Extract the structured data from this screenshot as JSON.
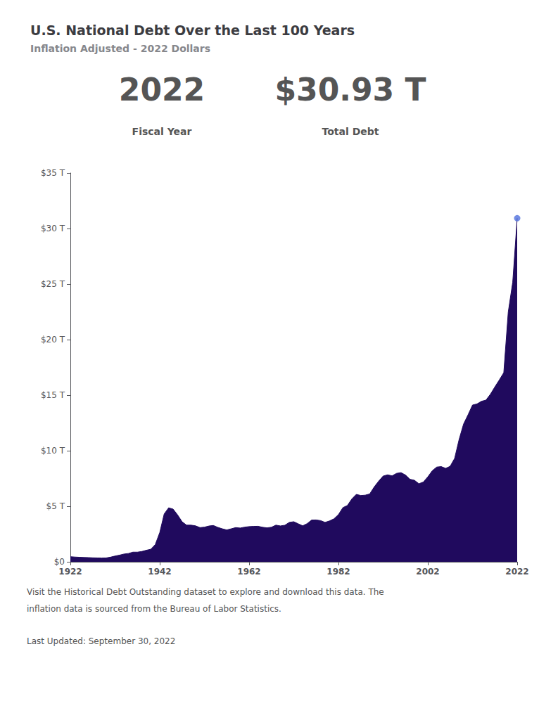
{
  "chart_data": {
    "type": "area",
    "title": "U.S. National Debt Over the Last 100 Years",
    "subtitle": "Inflation Adjusted - 2022 Dollars",
    "annotations": [
      "2022",
      "$30.93 T",
      "Fiscal Year",
      "Total Debt",
      "Visit the Historical Debt Outstanding dataset to explore and download this data. The",
      "inflation data is sourced from the Bureau of Labor Statistics.",
      "Last Updated: September 30, 2022"
    ],
    "color": "#200a5e",
    "x": [
      1922,
      1923,
      1924,
      1925,
      1926,
      1927,
      1928,
      1929,
      1930,
      1931,
      1932,
      1933,
      1934,
      1935,
      1936,
      1937,
      1938,
      1939,
      1940,
      1941,
      1942,
      1943,
      1944,
      1945,
      1946,
      1947,
      1948,
      1949,
      1950,
      1951,
      1952,
      1953,
      1954,
      1955,
      1956,
      1957,
      1958,
      1959,
      1960,
      1961,
      1962,
      1963,
      1964,
      1965,
      1966,
      1967,
      1968,
      1969,
      1970,
      1971,
      1972,
      1973,
      1974,
      1975,
      1976,
      1977,
      1978,
      1979,
      1980,
      1981,
      1982,
      1983,
      1984,
      1985,
      1986,
      1987,
      1988,
      1989,
      1990,
      1991,
      1992,
      1993,
      1994,
      1995,
      1996,
      1997,
      1998,
      1999,
      2000,
      2001,
      2002,
      2003,
      2004,
      2005,
      2006,
      2007,
      2008,
      2009,
      2010,
      2011,
      2012,
      2013,
      2014,
      2015,
      2016,
      2017,
      2018,
      2019,
      2020,
      2021,
      2022
    ],
    "values": [
      0.46,
      0.43,
      0.41,
      0.39,
      0.38,
      0.36,
      0.35,
      0.34,
      0.35,
      0.42,
      0.52,
      0.6,
      0.7,
      0.75,
      0.87,
      0.87,
      0.93,
      1.04,
      1.13,
      1.55,
      2.63,
      4.31,
      4.86,
      4.74,
      4.22,
      3.61,
      3.3,
      3.3,
      3.24,
      3.08,
      3.12,
      3.22,
      3.27,
      3.1,
      2.97,
      2.87,
      2.97,
      3.08,
      3.04,
      3.12,
      3.17,
      3.19,
      3.2,
      3.11,
      3.06,
      3.11,
      3.3,
      3.23,
      3.29,
      3.55,
      3.61,
      3.42,
      3.24,
      3.44,
      3.76,
      3.77,
      3.71,
      3.55,
      3.68,
      3.87,
      4.25,
      4.88,
      5.07,
      5.66,
      6.07,
      5.97,
      6.0,
      6.11,
      6.74,
      7.26,
      7.72,
      7.83,
      7.74,
      7.96,
      8.03,
      7.81,
      7.43,
      7.34,
      7.03,
      7.18,
      7.65,
      8.2,
      8.53,
      8.57,
      8.41,
      8.6,
      9.31,
      11.01,
      12.4,
      13.23,
      14.11,
      14.21,
      14.45,
      14.55,
      15.08,
      15.74,
      16.37,
      17.03,
      22.49,
      25.17,
      30.93
    ],
    "xlim": [
      1922,
      2022
    ],
    "xticks": [
      1922,
      1942,
      1962,
      1982,
      2002,
      2022
    ],
    "ylim": [
      0,
      35
    ],
    "yticks": [
      {
        "value": 0,
        "label": "$0"
      },
      {
        "value": 5,
        "label": "$5 T"
      },
      {
        "value": 10,
        "label": "$10 T"
      },
      {
        "value": 15,
        "label": "$15 T"
      },
      {
        "value": 20,
        "label": "$20 T"
      },
      {
        "value": 25,
        "label": "$25 T"
      },
      {
        "value": 30,
        "label": "$30 T"
      },
      {
        "value": 35,
        "label": "$35 T"
      }
    ],
    "grid": false
  }
}
